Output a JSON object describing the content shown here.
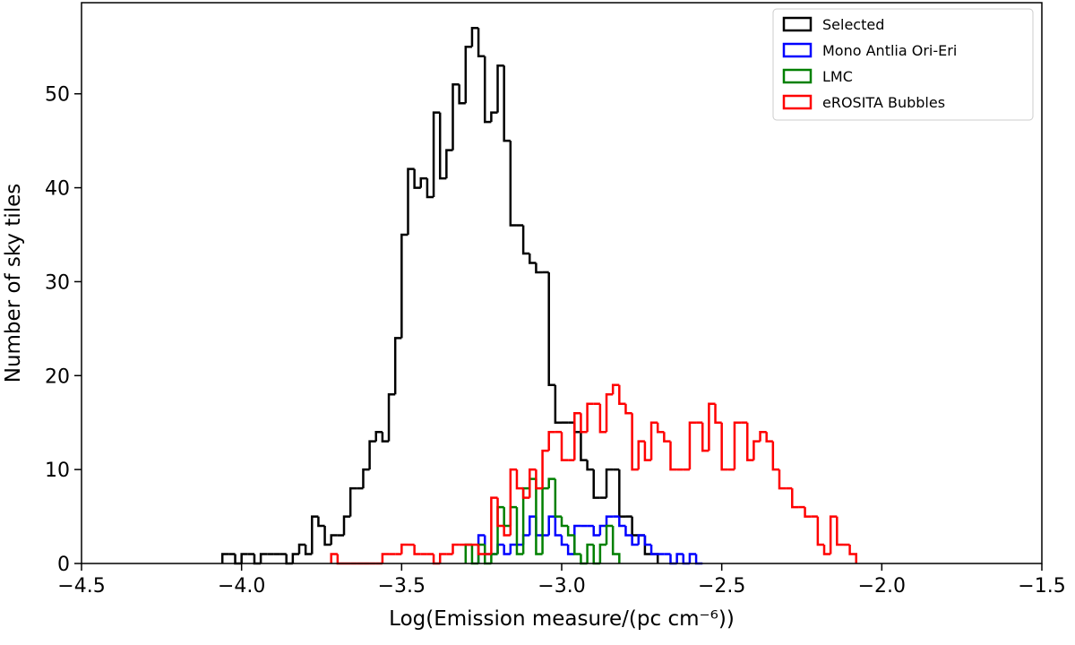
{
  "chart_data": {
    "type": "histogram",
    "xlabel": "Log(Emission measure/(pc cm⁻⁶))",
    "ylabel": "Number of sky tiles",
    "xlim": [
      -4.5,
      -1.5
    ],
    "ylim": [
      0,
      59.7
    ],
    "xticks": [
      {
        "value": -4.5,
        "label": "−4.5"
      },
      {
        "value": -4.0,
        "label": "−4.0"
      },
      {
        "value": -3.5,
        "label": "−3.5"
      },
      {
        "value": -3.0,
        "label": "−3.0"
      },
      {
        "value": -2.5,
        "label": "−2.5"
      },
      {
        "value": -2.0,
        "label": "−2.0"
      },
      {
        "value": -1.5,
        "label": "−1.5"
      }
    ],
    "yticks": [
      0,
      10,
      20,
      30,
      40,
      50
    ],
    "legend": "upper right",
    "series": [
      {
        "name": "Selected",
        "color": "#000000",
        "bins": [
          -4.06,
          -4.04,
          -4.02,
          -4.0,
          -3.98,
          -3.96,
          -3.94,
          -3.92,
          -3.9,
          -3.88,
          -3.86,
          -3.84,
          -3.82,
          -3.8,
          -3.78,
          -3.76,
          -3.74,
          -3.72,
          -3.7,
          -3.68,
          -3.66,
          -3.64,
          -3.62,
          -3.6,
          -3.58,
          -3.56,
          -3.54,
          -3.52,
          -3.5,
          -3.48,
          -3.46,
          -3.44,
          -3.42,
          -3.4,
          -3.38,
          -3.36,
          -3.34,
          -3.32,
          -3.3,
          -3.28,
          -3.26,
          -3.24,
          -3.22,
          -3.2,
          -3.18,
          -3.16,
          -3.14,
          -3.12,
          -3.1,
          -3.08,
          -3.06,
          -3.04,
          -3.02,
          -3.0,
          -2.98,
          -2.96,
          -2.94,
          -2.92,
          -2.9,
          -2.88,
          -2.86,
          -2.84,
          -2.82,
          -2.8,
          -2.78,
          -2.76,
          -2.74,
          -2.72,
          -2.7
        ],
        "values": [
          1,
          1,
          0,
          1,
          1,
          0,
          1,
          1,
          1,
          1,
          0,
          1,
          2,
          1,
          5,
          4,
          2,
          3,
          3,
          5,
          8,
          8,
          10,
          13,
          14,
          13,
          18,
          24,
          35,
          42,
          40,
          41,
          39,
          48,
          41,
          44,
          51,
          49,
          55,
          57,
          54,
          47,
          48,
          53,
          45,
          36,
          36,
          33,
          32,
          31,
          31,
          19,
          15,
          15,
          15,
          14,
          11,
          10,
          7,
          7,
          10,
          10,
          5,
          5,
          3,
          3,
          1,
          1
        ]
      },
      {
        "name": "Mono Antlia Ori-Eri",
        "color": "#0000ff",
        "bins": [
          -3.26,
          -3.24,
          -3.22,
          -3.2,
          -3.18,
          -3.16,
          -3.14,
          -3.12,
          -3.1,
          -3.08,
          -3.06,
          -3.04,
          -3.02,
          -3.0,
          -2.98,
          -2.96,
          -2.94,
          -2.92,
          -2.9,
          -2.88,
          -2.86,
          -2.84,
          -2.82,
          -2.8,
          -2.78,
          -2.76,
          -2.74,
          -2.72,
          -2.7,
          -2.68,
          -2.66,
          -2.64,
          -2.62,
          -2.6,
          -2.58,
          -2.56
        ],
        "values": [
          3,
          1,
          1,
          2,
          1,
          2,
          2,
          3,
          5,
          3,
          3,
          5,
          3,
          2,
          1,
          4,
          4,
          4,
          3,
          4,
          5,
          5,
          4,
          3,
          2,
          3,
          2,
          1,
          1,
          1,
          0,
          1,
          0,
          1,
          0
        ]
      },
      {
        "name": "LMC",
        "color": "#008000",
        "bins": [
          -3.3,
          -3.28,
          -3.26,
          -3.24,
          -3.22,
          -3.2,
          -3.18,
          -3.16,
          -3.14,
          -3.12,
          -3.1,
          -3.08,
          -3.06,
          -3.04,
          -3.02,
          -3.0,
          -2.98,
          -2.96,
          -2.94,
          -2.92,
          -2.9,
          -2.88,
          -2.86,
          -2.84,
          -2.82
        ],
        "values": [
          2,
          0,
          2,
          0,
          1,
          6,
          4,
          6,
          1,
          8,
          9,
          1,
          8,
          9,
          5,
          4,
          3,
          1,
          0,
          2,
          0,
          2,
          4,
          1
        ]
      },
      {
        "name": "eROSITA Bubbles",
        "color": "#ff0000",
        "bins": [
          -3.72,
          -3.7,
          -3.68,
          -3.66,
          -3.64,
          -3.62,
          -3.6,
          -3.58,
          -3.56,
          -3.54,
          -3.52,
          -3.5,
          -3.48,
          -3.46,
          -3.44,
          -3.42,
          -3.4,
          -3.38,
          -3.36,
          -3.34,
          -3.32,
          -3.3,
          -3.28,
          -3.26,
          -3.24,
          -3.22,
          -3.2,
          -3.18,
          -3.16,
          -3.14,
          -3.12,
          -3.1,
          -3.08,
          -3.06,
          -3.04,
          -3.02,
          -3.0,
          -2.98,
          -2.96,
          -2.94,
          -2.92,
          -2.9,
          -2.88,
          -2.86,
          -2.84,
          -2.82,
          -2.8,
          -2.78,
          -2.76,
          -2.74,
          -2.72,
          -2.7,
          -2.68,
          -2.66,
          -2.64,
          -2.62,
          -2.6,
          -2.58,
          -2.56,
          -2.54,
          -2.52,
          -2.5,
          -2.48,
          -2.46,
          -2.44,
          -2.42,
          -2.4,
          -2.38,
          -2.36,
          -2.34,
          -2.32,
          -2.3,
          -2.28,
          -2.26,
          -2.24,
          -2.22,
          -2.2,
          -2.18,
          -2.16,
          -2.14,
          -2.12,
          -2.1,
          -2.08
        ],
        "values": [
          1,
          0,
          0,
          0,
          0,
          0,
          0,
          0,
          1,
          1,
          1,
          2,
          2,
          1,
          1,
          1,
          0,
          1,
          1,
          2,
          2,
          2,
          2,
          1,
          1,
          7,
          4,
          3,
          10,
          8,
          7,
          10,
          8,
          12,
          14,
          14,
          11,
          11,
          16,
          14,
          17,
          17,
          14,
          18,
          19,
          17,
          16,
          10,
          13,
          11,
          15,
          14,
          13,
          10,
          10,
          10,
          15,
          15,
          12,
          17,
          15,
          10,
          10,
          15,
          15,
          11,
          13,
          14,
          13,
          10,
          8,
          8,
          6,
          6,
          5,
          5,
          2,
          1,
          5,
          2,
          2,
          1
        ]
      }
    ]
  }
}
